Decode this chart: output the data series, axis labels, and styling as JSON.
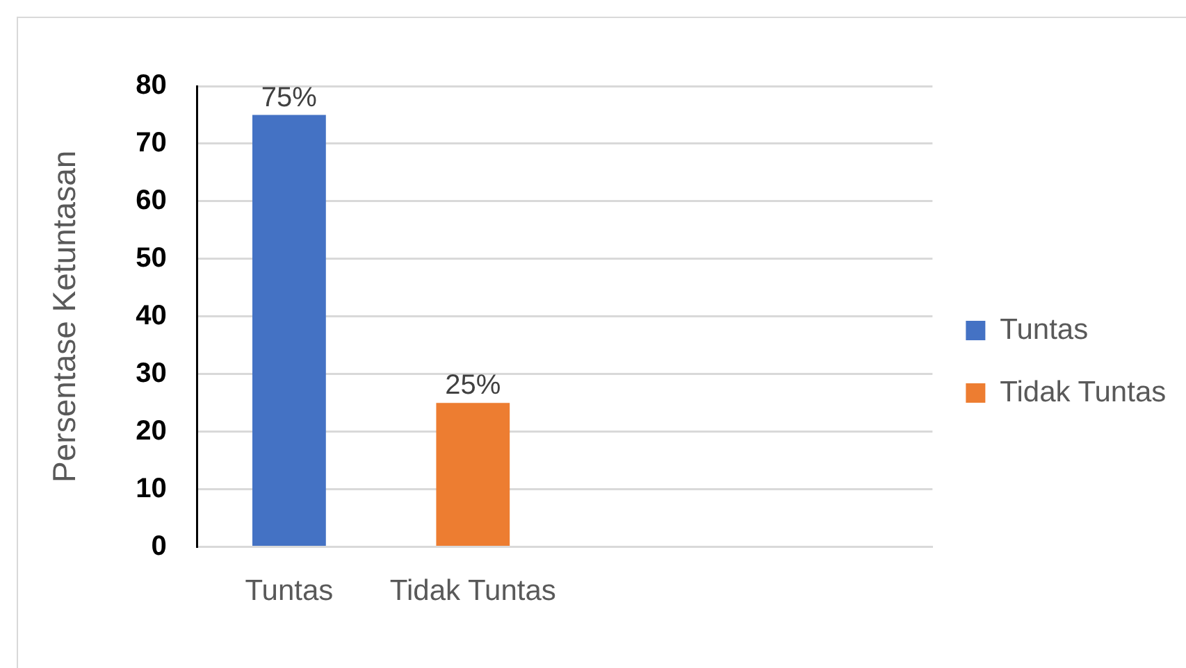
{
  "chart_data": {
    "type": "bar",
    "ylabel": "Persentase Ketuntasan",
    "categories": [
      "Tuntas",
      "Tidak Tuntas",
      null,
      null
    ],
    "series": [
      {
        "name": "Tuntas",
        "color": "#4472c4",
        "values": [
          75,
          null,
          null,
          null
        ],
        "value_labels": [
          "75%",
          null,
          null,
          null
        ]
      },
      {
        "name": "Tidak Tuntas",
        "color": "#ed7d31",
        "values": [
          null,
          25,
          null,
          null
        ],
        "value_labels": [
          null,
          "25%",
          null,
          null
        ]
      }
    ],
    "ylim": [
      0,
      80
    ],
    "yticks": [
      0,
      10,
      20,
      30,
      40,
      50,
      60,
      70,
      80
    ],
    "grid": "y",
    "legend": "right"
  }
}
